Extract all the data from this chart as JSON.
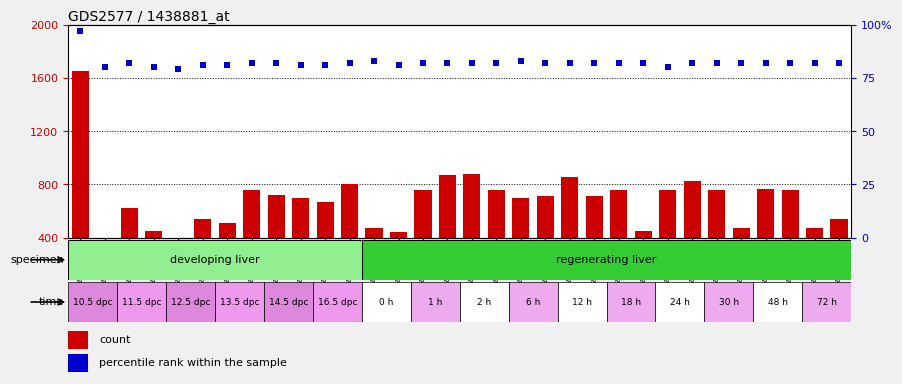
{
  "title": "GDS2577 / 1438881_at",
  "samples": [
    "GSM161128",
    "GSM161129",
    "GSM161130",
    "GSM161131",
    "GSM161132",
    "GSM161133",
    "GSM161134",
    "GSM161135",
    "GSM161136",
    "GSM161137",
    "GSM161138",
    "GSM161139",
    "GSM161108",
    "GSM161109",
    "GSM161110",
    "GSM161111",
    "GSM161112",
    "GSM161113",
    "GSM161114",
    "GSM161115",
    "GSM161116",
    "GSM161117",
    "GSM161118",
    "GSM161119",
    "GSM161120",
    "GSM161121",
    "GSM161122",
    "GSM161123",
    "GSM161124",
    "GSM161125",
    "GSM161126",
    "GSM161127"
  ],
  "counts": [
    1650,
    355,
    620,
    450,
    355,
    540,
    510,
    760,
    720,
    700,
    670,
    800,
    475,
    445,
    760,
    870,
    875,
    755,
    700,
    715,
    855,
    715,
    760,
    450,
    760,
    825,
    755,
    475,
    765,
    760,
    475,
    540
  ],
  "percentile": [
    97,
    80,
    82,
    80,
    79,
    81,
    81,
    82,
    82,
    81,
    81,
    82,
    83,
    81,
    82,
    82,
    82,
    82,
    83,
    82,
    82,
    82,
    82,
    82,
    80,
    82,
    82,
    82,
    82,
    82,
    82,
    82
  ],
  "bar_color": "#cc0000",
  "dot_color": "#0000cc",
  "left_ylim": [
    400,
    2000
  ],
  "right_ylim": [
    0,
    100
  ],
  "left_yticks": [
    400,
    800,
    1200,
    1600,
    2000
  ],
  "right_yticks": [
    0,
    25,
    50,
    75,
    100
  ],
  "right_yticklabels": [
    "0",
    "25",
    "50",
    "75",
    "100%"
  ],
  "specimen_groups": [
    {
      "label": "developing liver",
      "start": 0,
      "end": 12,
      "color": "#90ee90"
    },
    {
      "label": "regenerating liver",
      "start": 12,
      "end": 32,
      "color": "#33cc33"
    }
  ],
  "time_labels": [
    {
      "label": "10.5 dpc",
      "start": 0,
      "end": 2,
      "color": "#dd88dd"
    },
    {
      "label": "11.5 dpc",
      "start": 2,
      "end": 4,
      "color": "#ee99ee"
    },
    {
      "label": "12.5 dpc",
      "start": 4,
      "end": 6,
      "color": "#dd88dd"
    },
    {
      "label": "13.5 dpc",
      "start": 6,
      "end": 8,
      "color": "#ee99ee"
    },
    {
      "label": "14.5 dpc",
      "start": 8,
      "end": 10,
      "color": "#dd88dd"
    },
    {
      "label": "16.5 dpc",
      "start": 10,
      "end": 12,
      "color": "#ee99ee"
    },
    {
      "label": "0 h",
      "start": 12,
      "end": 14,
      "color": "#ffffff"
    },
    {
      "label": "1 h",
      "start": 14,
      "end": 16,
      "color": "#eeaaee"
    },
    {
      "label": "2 h",
      "start": 16,
      "end": 18,
      "color": "#ffffff"
    },
    {
      "label": "6 h",
      "start": 18,
      "end": 20,
      "color": "#eeaaee"
    },
    {
      "label": "12 h",
      "start": 20,
      "end": 22,
      "color": "#ffffff"
    },
    {
      "label": "18 h",
      "start": 22,
      "end": 24,
      "color": "#eeaaee"
    },
    {
      "label": "24 h",
      "start": 24,
      "end": 26,
      "color": "#ffffff"
    },
    {
      "label": "30 h",
      "start": 26,
      "end": 28,
      "color": "#eeaaee"
    },
    {
      "label": "48 h",
      "start": 28,
      "end": 30,
      "color": "#ffffff"
    },
    {
      "label": "72 h",
      "start": 30,
      "end": 32,
      "color": "#eeaaee"
    }
  ],
  "specimen_label": "specimen",
  "time_label": "time",
  "legend_count_label": "count",
  "legend_percentile_label": "percentile rank within the sample",
  "fig_bg_color": "#f0f0f0",
  "plot_bg": "#ffffff",
  "axis_label_color_left": "#cc0000",
  "axis_label_color_right": "#0000cc"
}
